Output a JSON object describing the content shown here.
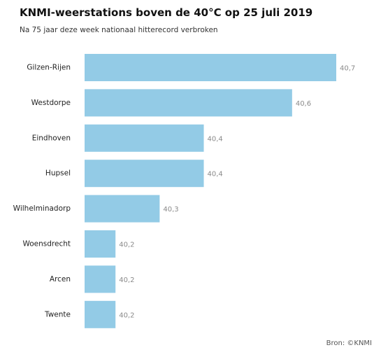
{
  "chart_data": {
    "type": "bar",
    "orientation": "horizontal",
    "title": "KNMI-weerstations boven de 40°C op 25 juli 2019",
    "subtitle": "Na 75 jaar deze week nationaal hitterecord verbroken",
    "categories": [
      "Gilzen-Rijen",
      "Westdorpe",
      "Eindhoven",
      "Hupsel",
      "Wilhelminadorp",
      "Woensdrecht",
      "Arcen",
      "Twente"
    ],
    "values": [
      40.7,
      40.6,
      40.4,
      40.4,
      40.3,
      40.2,
      40.2,
      40.2
    ],
    "value_labels": [
      "40,7",
      "40,6",
      "40,4",
      "40,4",
      "40,3",
      "40,2",
      "40,2",
      "40,2"
    ],
    "xlim": [
      40.13,
      40.7
    ],
    "grid": false,
    "bar_color": "#93cbe6",
    "source": "Bron:  ©KNMI"
  }
}
